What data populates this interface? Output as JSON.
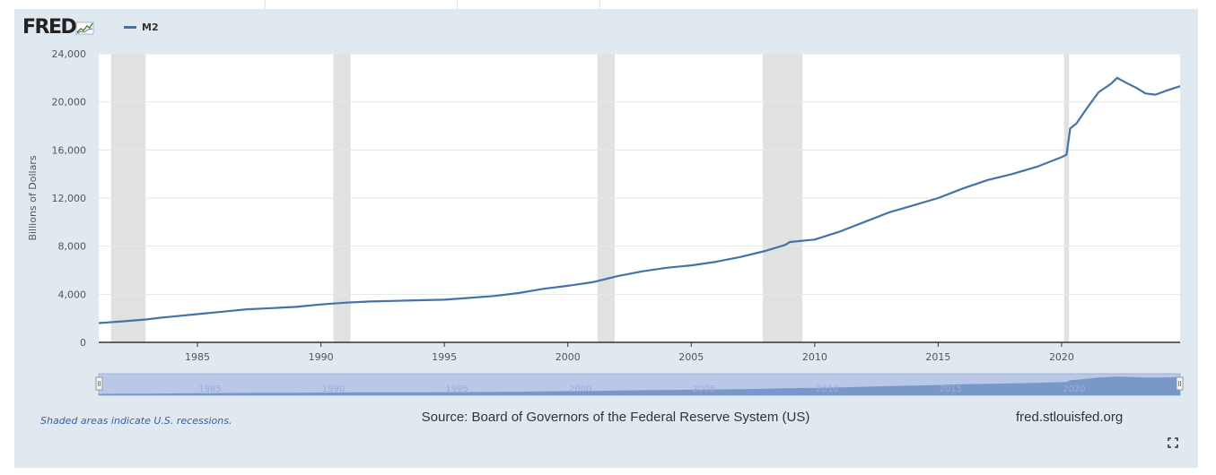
{
  "header": {
    "logo_text": "FRED",
    "legend_label": "M2"
  },
  "footer": {
    "recession_note": "Shaded areas indicate U.S. recessions.",
    "source": "Source: Board of Governors of the Federal Reserve System (US)",
    "site": "fred.stlouisfed.org"
  },
  "icons": {
    "logo_chart": "small-line-chart-icon",
    "fullscreen": "expand-icon",
    "navigator_handle": "drag-handle-icon"
  },
  "colors": {
    "line": "#4572a7",
    "recession": "#e1e1e1",
    "frame_bg": "#e1e9f0",
    "navigator_fill": "#b8c8e6",
    "navigator_series": "#6d8fc4"
  },
  "chart_data": {
    "type": "line",
    "title": "M2",
    "xlabel": "",
    "ylabel": "Billions of Dollars",
    "xlim": [
      1981.0,
      2024.8
    ],
    "ylim": [
      0,
      24000
    ],
    "yticks": [
      0,
      4000,
      8000,
      12000,
      16000,
      20000,
      24000
    ],
    "ytick_labels": [
      "0",
      "4,000",
      "8,000",
      "12,000",
      "16,000",
      "20,000",
      "24,000"
    ],
    "xticks": [
      1985,
      1990,
      1995,
      2000,
      2005,
      2010,
      2015,
      2020
    ],
    "xtick_labels": [
      "1985",
      "1990",
      "1995",
      "2000",
      "2005",
      "2010",
      "2015",
      "2020"
    ],
    "grid": true,
    "recessions": [
      [
        1981.5,
        1982.9
      ],
      [
        1990.5,
        1991.2
      ],
      [
        2001.2,
        2001.9
      ],
      [
        2007.9,
        2009.5
      ],
      [
        2020.1,
        2020.3
      ]
    ],
    "series": [
      {
        "name": "M2",
        "x": [
          1981.0,
          1982.0,
          1982.9,
          1983.5,
          1984.0,
          1985.0,
          1986.0,
          1987.0,
          1988.0,
          1989.0,
          1990.0,
          1991.0,
          1992.0,
          1993.0,
          1994.0,
          1995.0,
          1996.0,
          1997.0,
          1998.0,
          1999.0,
          2000.0,
          2001.0,
          2001.8,
          2002.0,
          2003.0,
          2004.0,
          2005.0,
          2006.0,
          2007.0,
          2008.0,
          2008.8,
          2009.0,
          2010.0,
          2011.0,
          2012.0,
          2013.0,
          2014.0,
          2015.0,
          2016.0,
          2017.0,
          2018.0,
          2019.0,
          2020.0,
          2020.2,
          2020.35,
          2020.6,
          2021.0,
          2021.5,
          2022.0,
          2022.25,
          2022.6,
          2023.0,
          2023.4,
          2023.8,
          2024.2,
          2024.8
        ],
        "values": [
          1600,
          1750,
          1900,
          2050,
          2150,
          2350,
          2550,
          2750,
          2850,
          2950,
          3150,
          3300,
          3400,
          3450,
          3500,
          3550,
          3700,
          3850,
          4100,
          4450,
          4700,
          5000,
          5400,
          5500,
          5900,
          6200,
          6400,
          6700,
          7100,
          7600,
          8100,
          8350,
          8550,
          9200,
          10000,
          10800,
          11400,
          12000,
          12800,
          13500,
          14000,
          14600,
          15400,
          15600,
          17800,
          18200,
          19400,
          20800,
          21500,
          22000,
          21600,
          21200,
          20700,
          20600,
          20900,
          21300
        ]
      }
    ],
    "navigator": {
      "xtick_labels": [
        "1985",
        "1990",
        "1995",
        "2000",
        "2005",
        "2010",
        "2015",
        "2020"
      ]
    }
  }
}
